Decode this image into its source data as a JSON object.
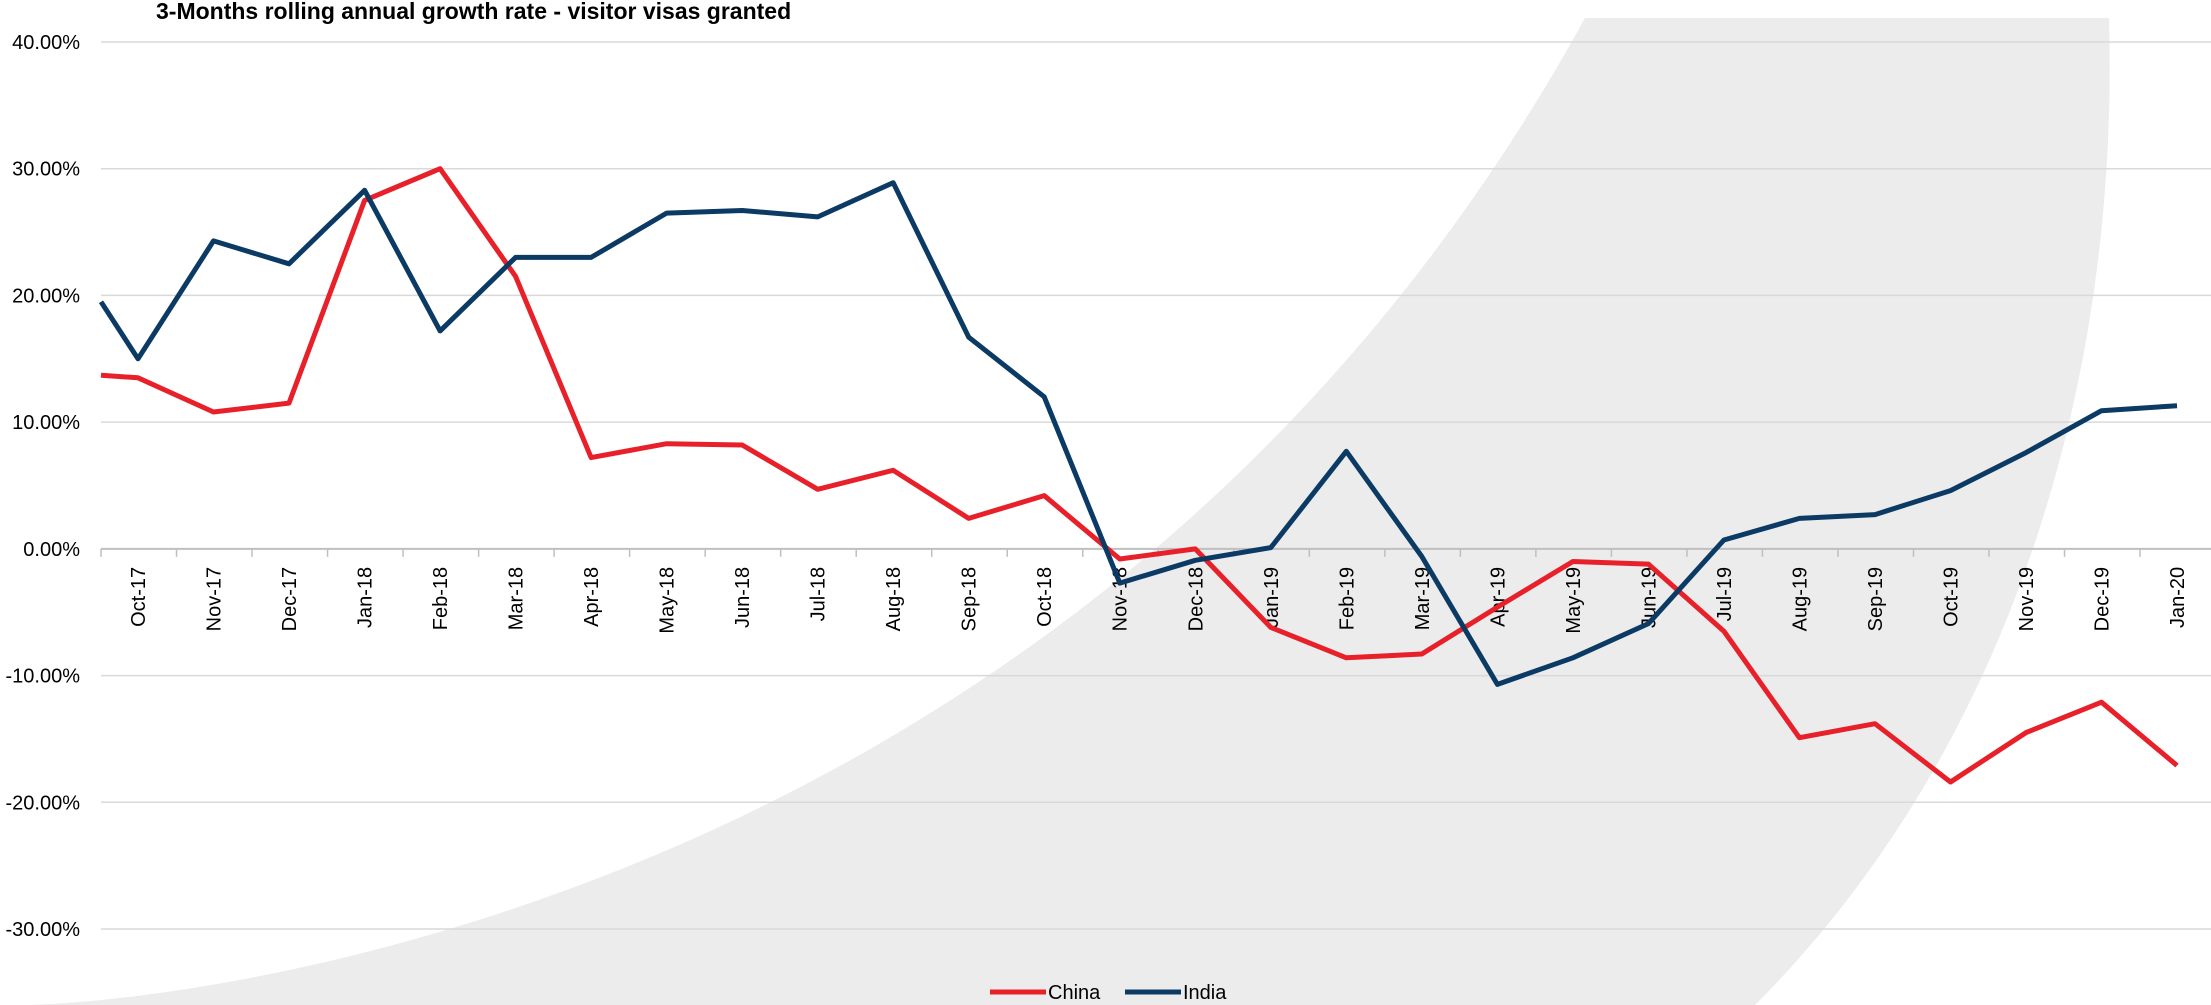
{
  "chart_data": {
    "type": "line",
    "title": "3-Months rolling annual growth rate - visitor visas granted",
    "xlabel": "",
    "ylabel": "",
    "ylim": [
      -0.3,
      0.4
    ],
    "yticks": [
      0.4,
      0.3,
      0.2,
      0.1,
      0.0,
      -0.1,
      -0.2,
      -0.3
    ],
    "ytick_labels": [
      "40.00%",
      "30.00%",
      "20.00%",
      "10.00%",
      "0.00%",
      "-10.00%",
      "-20.00%",
      "-30.00%"
    ],
    "grid": true,
    "legend_position": "bottom",
    "categories": [
      "Oct-17",
      "Nov-17",
      "Dec-17",
      "Jan-18",
      "Feb-18",
      "Mar-18",
      "Apr-18",
      "May-18",
      "Jun-18",
      "Jul-18",
      "Aug-18",
      "Sep-18",
      "Oct-18",
      "Nov-18",
      "Dec-18",
      "Jan-19",
      "Feb-19",
      "Mar-19",
      "Apr-19",
      "May-19",
      "Jun-19",
      "Jul-19",
      "Aug-19",
      "Sep-19",
      "Oct-19",
      "Nov-19",
      "Dec-19",
      "Jan-20"
    ],
    "series": [
      {
        "name": "China",
        "color": "#e8202a",
        "start": 0.137,
        "values": [
          0.135,
          0.108,
          0.115,
          0.275,
          0.3,
          0.215,
          0.072,
          0.083,
          0.082,
          0.047,
          0.062,
          0.024,
          0.042,
          -0.008,
          0.0,
          -0.062,
          -0.086,
          -0.083,
          -0.046,
          -0.01,
          -0.012,
          -0.065,
          -0.149,
          -0.138,
          -0.184,
          -0.145,
          -0.121,
          -0.171
        ]
      },
      {
        "name": "India",
        "color": "#0b3a64",
        "start": 0.195,
        "values": [
          0.15,
          0.243,
          0.225,
          0.283,
          0.172,
          0.23,
          0.23,
          0.265,
          0.267,
          0.262,
          0.289,
          0.167,
          0.12,
          -0.027,
          -0.009,
          0.001,
          0.077,
          -0.006,
          -0.107,
          -0.086,
          -0.059,
          0.007,
          0.024,
          0.027,
          0.046,
          0.076,
          0.109,
          0.113
        ]
      }
    ]
  },
  "colors": {
    "grid": "#d9d9d9",
    "axis": "#bfbfbf",
    "arc": "#ececec"
  }
}
